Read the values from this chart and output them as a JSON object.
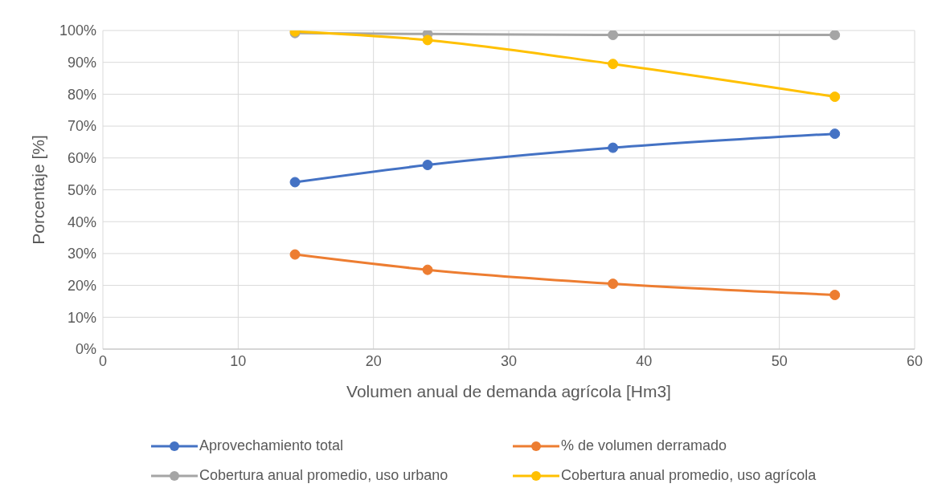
{
  "chart_data": {
    "type": "line",
    "xlabel": "Volumen anual de demanda agrícola [Hm3]",
    "ylabel": "Porcentaje [%]",
    "x": [
      14.2,
      24,
      37.7,
      54.1
    ],
    "series": [
      {
        "name": "Aprovechamiento total",
        "color": "#4472c4",
        "values": [
          52.4,
          57.8,
          63.2,
          67.6
        ]
      },
      {
        "name": "% de volumen derramado",
        "color": "#ed7d31",
        "values": [
          29.7,
          24.9,
          20.5,
          17
        ]
      },
      {
        "name": "Cobertura anual promedio, uso urbano",
        "color": "#a5a5a5",
        "values": [
          99.2,
          98.9,
          98.6,
          98.6
        ]
      },
      {
        "name": "Cobertura anual promedio, uso agrícola",
        "color": "#ffc000",
        "values": [
          99.7,
          97,
          89.5,
          79.2
        ]
      }
    ],
    "xlim": [
      0,
      60
    ],
    "xticks": [
      0,
      10,
      20,
      30,
      40,
      50,
      60
    ],
    "ylim": [
      0,
      100
    ],
    "yticks": [
      {
        "value": 0,
        "label": "0%"
      },
      {
        "value": 10,
        "label": "10%"
      },
      {
        "value": 20,
        "label": "20%"
      },
      {
        "value": 30,
        "label": "30%"
      },
      {
        "value": 40,
        "label": "40%"
      },
      {
        "value": 50,
        "label": "50%"
      },
      {
        "value": 60,
        "label": "60%"
      },
      {
        "value": 70,
        "label": "70%"
      },
      {
        "value": 80,
        "label": "80%"
      },
      {
        "value": 90,
        "label": "90%"
      },
      {
        "value": 100,
        "label": "100%"
      }
    ],
    "grid": true,
    "legend": "bottom",
    "marker": "circle",
    "line_style": "solid"
  }
}
